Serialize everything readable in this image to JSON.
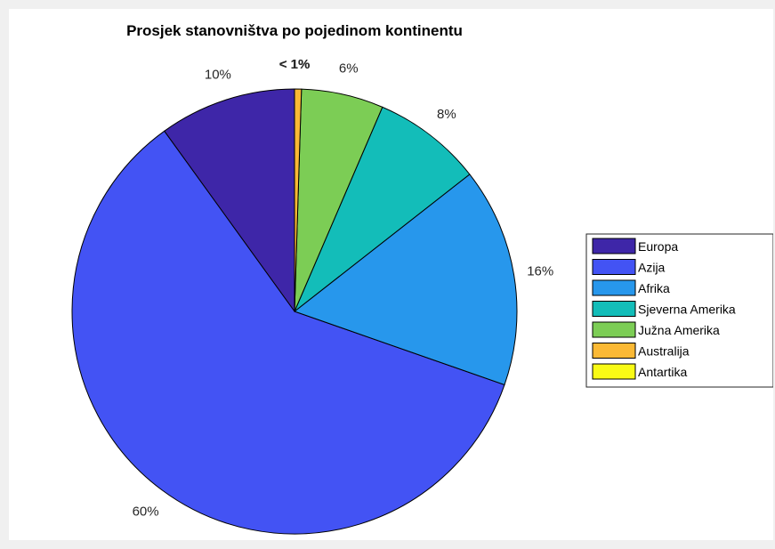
{
  "chart_data": {
    "type": "pie",
    "title": "Prosjek stanovništva po pojedinom kontinentu",
    "categories": [
      "Europa",
      "Azija",
      "Afrika",
      "Sjeverna Amerika",
      "Južna Amerika",
      "Australija",
      "Antartika"
    ],
    "values": [
      10,
      60,
      16,
      8,
      6,
      0.5,
      0
    ],
    "labels": [
      "10%",
      "60%",
      "16%",
      "8%",
      "6%",
      "< 1%",
      "< 1%"
    ],
    "colors": [
      "#3e26a8",
      "#4353f4",
      "#2797ec",
      "#13bdb9",
      "#7ccd55",
      "#fbb935",
      "#f9fb15"
    ],
    "legend_position": "right"
  }
}
